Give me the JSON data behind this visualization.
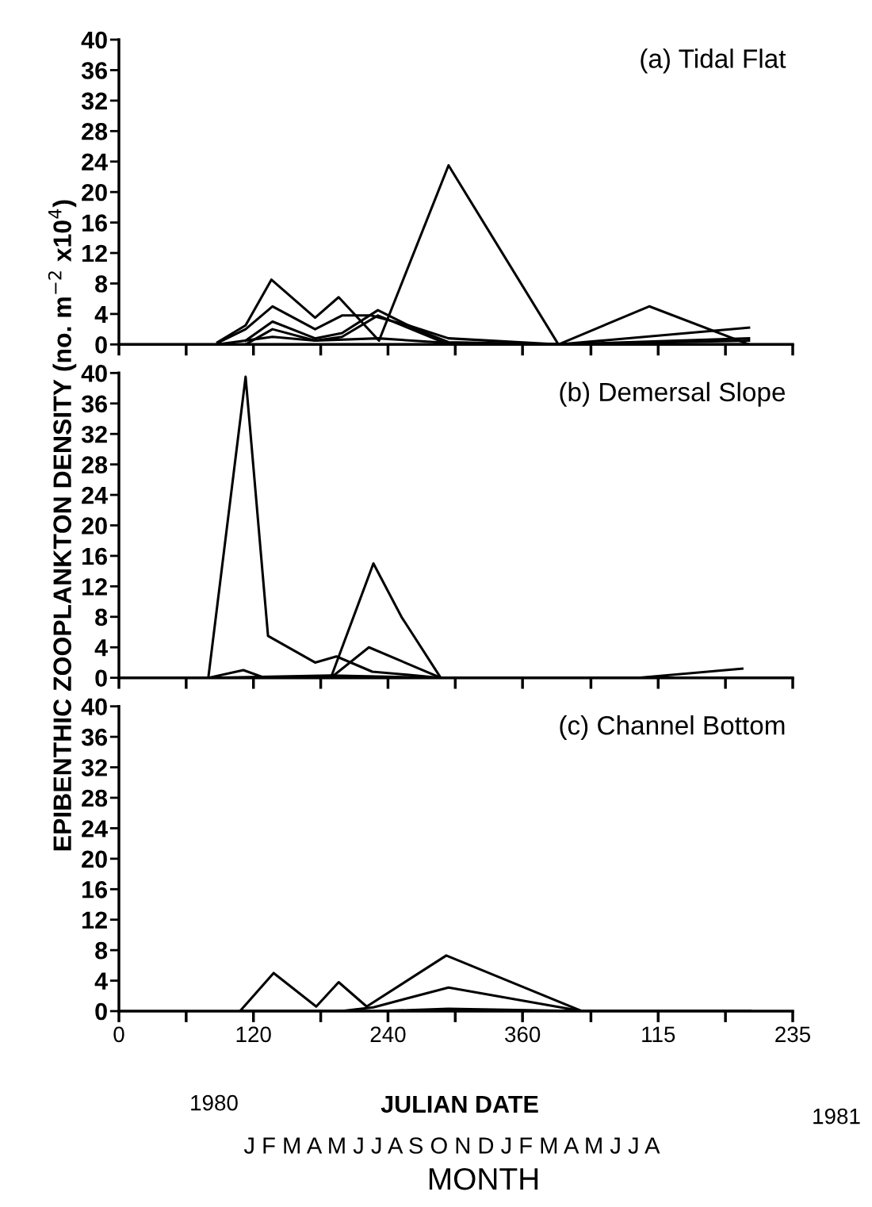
{
  "chart_data": [
    {
      "type": "line",
      "title": "(a) Tidal Flat",
      "xlim": [
        "1979-12-31",
        "1981-08-23"
      ],
      "ylim": [
        0,
        40
      ],
      "tick_labels": "y",
      "xticks": [
        {
          "value": "1979-12-31",
          "label": null
        },
        {
          "value": "1980-02-29",
          "label": null
        },
        {
          "value": "1980-04-29",
          "label": null
        },
        {
          "value": "1980-06-28",
          "label": null
        },
        {
          "value": "1980-08-27",
          "label": null
        },
        {
          "value": "1980-10-26",
          "label": null
        },
        {
          "value": "1980-12-25",
          "label": null
        },
        {
          "value": "1981-02-24",
          "label": null
        },
        {
          "value": "1981-04-25",
          "label": null
        },
        {
          "value": "1981-06-24",
          "label": null
        },
        {
          "value": "1981-08-23",
          "label": null
        }
      ],
      "yticks": [
        0,
        4,
        8,
        12,
        16,
        20,
        24,
        28,
        32,
        36,
        40
      ],
      "grid": false,
      "series": [
        {
          "color": "#000000",
          "x": [
            "1980-03-28",
            "1980-04-22",
            "1980-05-15",
            "1980-06-23",
            "1980-07-14",
            "1980-08-19",
            "1980-10-20",
            "1981-01-26",
            "1981-04-17",
            "1981-07-15"
          ],
          "values": [
            0.3,
            2.5,
            8.5,
            3.5,
            6.2,
            0.5,
            23.5,
            0,
            5,
            0
          ]
        },
        {
          "color": "#000000",
          "x": [
            "1980-03-28",
            "1980-04-22",
            "1980-05-16",
            "1980-06-23",
            "1980-07-17",
            "1980-08-12",
            "1980-09-14",
            "1980-10-20",
            "1981-01-26",
            "1981-07-15"
          ],
          "values": [
            0.2,
            2,
            5,
            2,
            3.8,
            3.8,
            2.5,
            0.8,
            0,
            2.2
          ]
        },
        {
          "color": "#000000",
          "x": [
            "1980-04-22",
            "1980-05-16",
            "1980-06-23",
            "1980-07-17",
            "1980-08-18",
            "1980-09-21",
            "1980-10-20",
            "1981-01-26",
            "1981-07-15"
          ],
          "values": [
            0.5,
            3,
            0.8,
            1.5,
            4.5,
            2,
            0.3,
            0,
            0.5
          ]
        },
        {
          "color": "#000000",
          "x": [
            "1980-04-22",
            "1980-05-16",
            "1980-06-23",
            "1980-07-17",
            "1980-08-18",
            "1980-10-20",
            "1981-01-26",
            "1981-07-15"
          ],
          "values": [
            0,
            2,
            0.5,
            1,
            3.8,
            0,
            0,
            0
          ]
        },
        {
          "color": "#000000",
          "x": [
            "1980-03-28",
            "1980-05-16",
            "1980-06-23",
            "1980-08-18",
            "1980-10-20",
            "1981-01-26",
            "1981-07-15"
          ],
          "values": [
            0,
            1,
            0.5,
            0.8,
            0.2,
            0,
            0.8
          ]
        }
      ]
    },
    {
      "type": "line",
      "title": "(b) Demersal Slope",
      "ylabel": "EPIBENTHIC ZOOPLANKTON DENSITY (no. m$^{−2}$ x10$^{4}$)",
      "xlim": [
        "1979-12-31",
        "1981-08-23"
      ],
      "ylim": [
        0,
        40
      ],
      "tick_labels": "y",
      "xticks": [
        {
          "value": "1979-12-31",
          "label": null
        },
        {
          "value": "1980-02-29",
          "label": null
        },
        {
          "value": "1980-04-29",
          "label": null
        },
        {
          "value": "1980-06-28",
          "label": null
        },
        {
          "value": "1980-08-27",
          "label": null
        },
        {
          "value": "1980-10-26",
          "label": null
        },
        {
          "value": "1980-12-25",
          "label": null
        },
        {
          "value": "1981-02-24",
          "label": null
        },
        {
          "value": "1981-04-25",
          "label": null
        },
        {
          "value": "1981-06-24",
          "label": null
        },
        {
          "value": "1981-08-23",
          "label": null
        }
      ],
      "yticks": [
        0,
        4,
        8,
        12,
        16,
        20,
        24,
        28,
        32,
        36,
        40
      ],
      "grid": false,
      "series": [
        {
          "color": "#000000",
          "x": [
            "1980-03-20",
            "1980-04-22",
            "1980-05-12",
            "1980-06-23",
            "1980-07-12",
            "1980-08-13",
            "1980-10-13",
            "1981-04-07",
            "1981-07-09"
          ],
          "values": [
            0.3,
            39.5,
            5.5,
            2,
            2.8,
            0.8,
            0,
            0,
            0
          ]
        },
        {
          "color": "#000000",
          "x": [
            "1980-07-07",
            "1980-08-14",
            "1980-09-08",
            "1980-10-13",
            "1981-04-07",
            "1981-07-09"
          ],
          "values": [
            0,
            15,
            8,
            0,
            0,
            1.2
          ]
        },
        {
          "color": "#000000",
          "x": [
            "1980-03-20",
            "1980-04-20",
            "1980-05-09",
            "1980-07-07",
            "1980-08-10",
            "1980-10-13",
            "1981-07-09"
          ],
          "values": [
            0,
            1,
            0,
            0,
            4,
            0,
            0
          ]
        },
        {
          "color": "#000000",
          "x": [
            "1980-03-20",
            "1980-07-07",
            "1980-10-13",
            "1981-07-09"
          ],
          "values": [
            0,
            0.3,
            0,
            0
          ]
        }
      ]
    },
    {
      "type": "line",
      "title": "(c) Channel Bottom",
      "xlabel": "JULIAN DATE",
      "xlim": [
        "1979-12-31",
        "1981-08-23"
      ],
      "ylim": [
        0,
        40
      ],
      "xticks": [
        {
          "value": "1979-12-31",
          "label": "0"
        },
        {
          "value": "1980-02-29",
          "label": null
        },
        {
          "value": "1980-04-29",
          "label": "120"
        },
        {
          "value": "1980-06-28",
          "label": null
        },
        {
          "value": "1980-08-27",
          "label": "240"
        },
        {
          "value": "1980-10-26",
          "label": null
        },
        {
          "value": "1980-12-25",
          "label": "360"
        },
        {
          "value": "1981-02-24",
          "label": null
        },
        {
          "value": "1981-04-25",
          "label": "115"
        },
        {
          "value": "1981-06-24",
          "label": null
        },
        {
          "value": "1981-08-23",
          "label": "235"
        }
      ],
      "yticks": [
        0,
        4,
        8,
        12,
        16,
        20,
        24,
        28,
        32,
        36,
        40
      ],
      "grid": false,
      "annotations": [
        "1980",
        "1981",
        "J F M A M J J A S O N D J F M A M J J A",
        "MONTH"
      ],
      "series": [
        {
          "color": "#000000",
          "x": [
            "1980-04-17",
            "1980-05-17",
            "1980-06-24",
            "1980-07-14",
            "1980-08-08",
            "1980-10-18",
            "1981-02-16",
            "1981-07-16"
          ],
          "values": [
            0,
            5,
            0.6,
            3.8,
            0.6,
            7.3,
            0,
            0
          ]
        },
        {
          "color": "#000000",
          "x": [
            "1980-04-17",
            "1980-07-16",
            "1980-08-14",
            "1980-10-20",
            "1981-02-16",
            "1981-07-16"
          ],
          "values": [
            0,
            0,
            0.5,
            3.1,
            0,
            0
          ]
        },
        {
          "color": "#000000",
          "x": [
            "1980-04-17",
            "1980-08-17",
            "1980-10-20",
            "1981-02-16",
            "1981-07-16"
          ],
          "values": [
            0,
            0,
            0.3,
            0,
            0
          ]
        }
      ]
    }
  ]
}
